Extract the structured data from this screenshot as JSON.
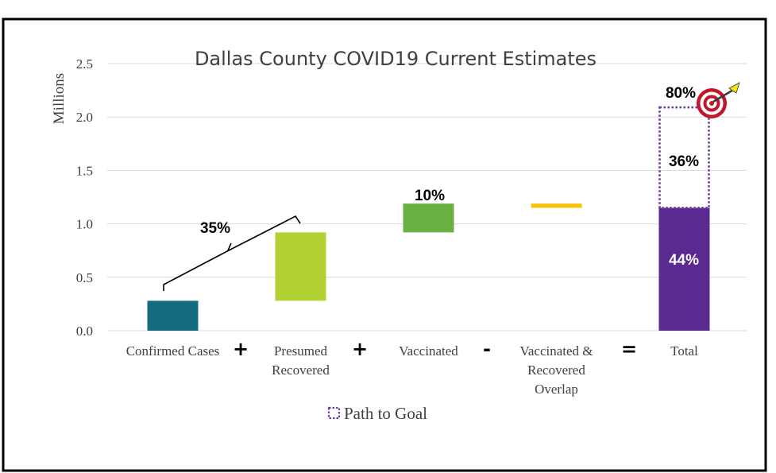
{
  "chart_data": {
    "type": "bar",
    "title": "Dallas County COVID19 Current Estimates",
    "ylabel": "Millions",
    "ylim": [
      0,
      2.5
    ],
    "yticks": [
      "0.0",
      "0.5",
      "1.0",
      "1.5",
      "2.0",
      "2.5"
    ],
    "grid": true,
    "categories": [
      {
        "lines": [
          "Confirmed Cases"
        ],
        "base": 0,
        "value": 0.28,
        "color": "#146b80"
      },
      {
        "lines": [
          "Presumed",
          "Recovered"
        ],
        "base": 0.28,
        "value": 0.64,
        "color": "#b2d234"
      },
      {
        "lines": [
          "Vaccinated"
        ],
        "base": 0.92,
        "value": 0.27,
        "color": "#6ab043"
      },
      {
        "lines": [
          "Vaccinated &",
          "Recovered",
          "Overlap"
        ],
        "base": 1.15,
        "value": 0.04,
        "color": "#f9c20d"
      },
      {
        "lines": [
          "Total"
        ],
        "base": 0,
        "value": 1.15,
        "color": "#5b2a90"
      }
    ],
    "operators": [
      "+",
      "+",
      "-",
      "="
    ],
    "path_to_goal": {
      "base": 1.15,
      "top": 2.09,
      "color": "#6a3fa0"
    },
    "annotations": {
      "confirmed_presumed_pct": "35%",
      "vaccinated_pct": "10%",
      "total_pct": "44%",
      "path_pct": "36%",
      "goal_pct": "80%"
    },
    "legend": {
      "label": "Path to Goal",
      "position": "bottom"
    }
  }
}
